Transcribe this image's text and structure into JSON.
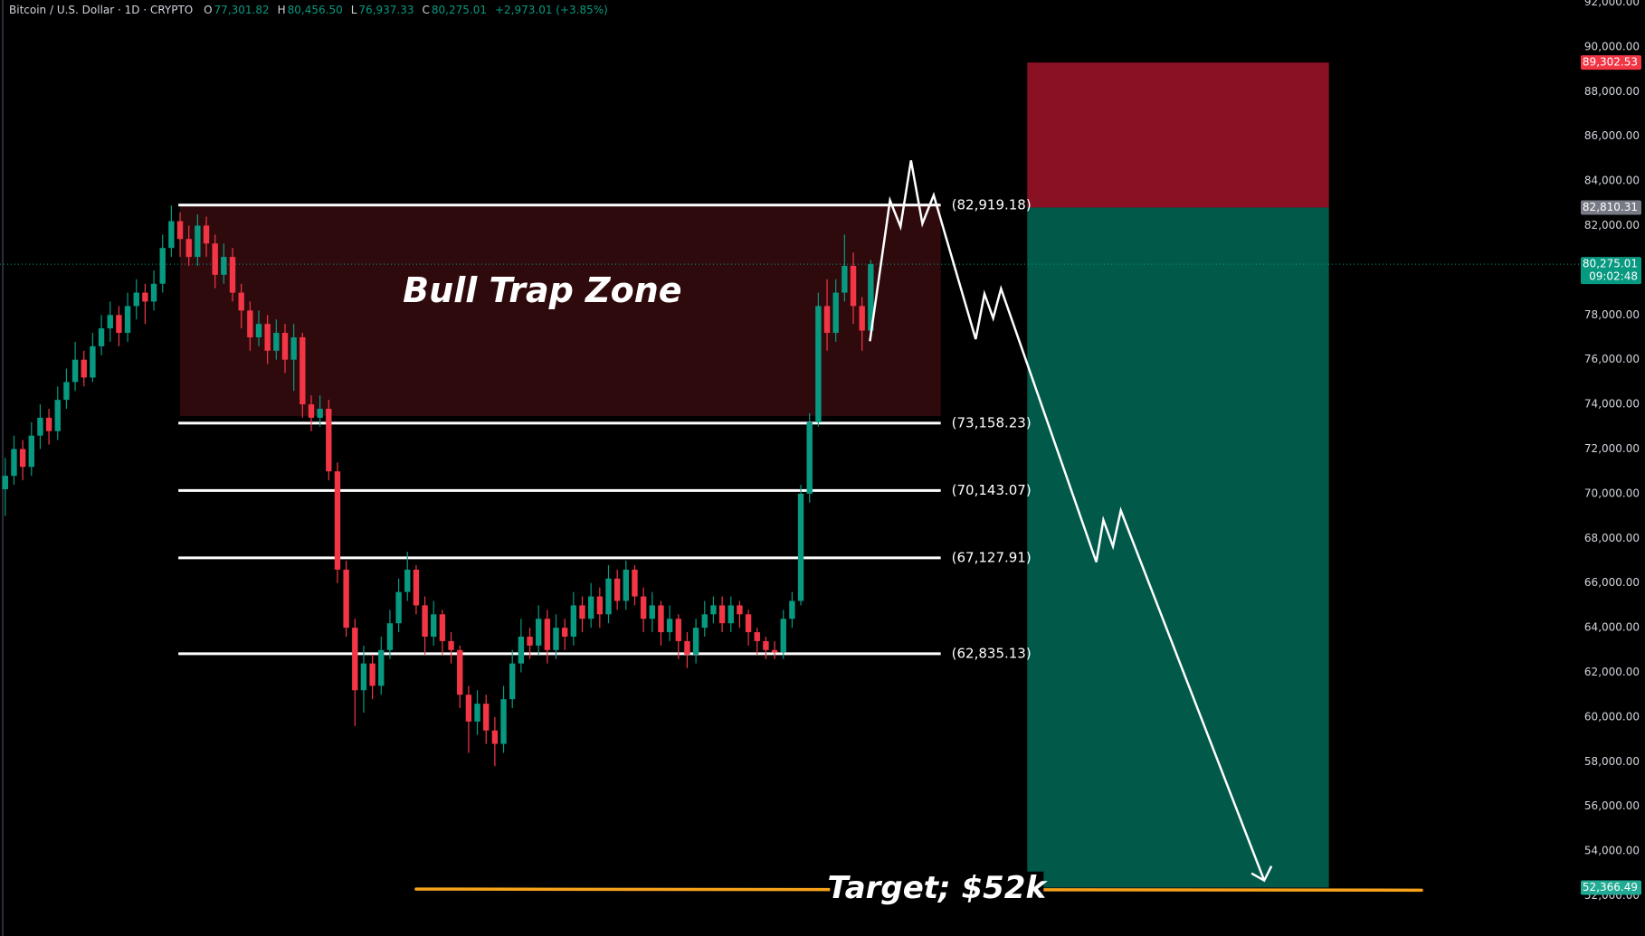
{
  "chart_data": {
    "type": "candlestick",
    "title": "Bitcoin / U.S. Dollar · 1D · CRYPTO",
    "ohlc": [
      {
        "key": "O",
        "value": "77,301.82"
      },
      {
        "key": "H",
        "value": "80,456.50"
      },
      {
        "key": "L",
        "value": "76,937.33"
      },
      {
        "key": "C",
        "value": "80,275.01"
      }
    ],
    "change": "+2,973.01 (+3.85%)",
    "up_color": "#089981",
    "down_color": "#f23645",
    "xlim": [
      -0.6,
      180
    ],
    "ylim": [
      50200,
      92100
    ],
    "yticks": [
      {
        "value": 92000,
        "label": "92,000.00"
      },
      {
        "value": 90000,
        "label": "90,000.00"
      },
      {
        "value": 88000,
        "label": "88,000.00"
      },
      {
        "value": 86000,
        "label": "86,000.00"
      },
      {
        "value": 84000,
        "label": "84,000.00"
      },
      {
        "value": 82000,
        "label": "82,000.00"
      },
      {
        "value": 80000,
        "label": "80,000.00"
      },
      {
        "value": 78000,
        "label": "78,000.00"
      },
      {
        "value": 76000,
        "label": "76,000.00"
      },
      {
        "value": 74000,
        "label": "74,000.00"
      },
      {
        "value": 72000,
        "label": "72,000.00"
      },
      {
        "value": 70000,
        "label": "70,000.00"
      },
      {
        "value": 68000,
        "label": "68,000.00"
      },
      {
        "value": 66000,
        "label": "66,000.00"
      },
      {
        "value": 64000,
        "label": "64,000.00"
      },
      {
        "value": 62000,
        "label": "62,000.00"
      },
      {
        "value": 60000,
        "label": "60,000.00"
      },
      {
        "value": 58000,
        "label": "58,000.00"
      },
      {
        "value": 56000,
        "label": "56,000.00"
      },
      {
        "value": 54000,
        "label": "54,000.00"
      },
      {
        "value": 52000,
        "label": "52,000.00"
      }
    ],
    "open": [
      70200,
      70800,
      72000,
      71200,
      72600,
      73400,
      72800,
      74200,
      75000,
      76000,
      75200,
      76600,
      77400,
      78000,
      77200,
      78400,
      79000,
      78600,
      79400,
      81000,
      82200,
      81400,
      80600,
      82000,
      81200,
      79800,
      80600,
      79000,
      78200,
      77000,
      77600,
      76400,
      77200,
      76000,
      77000,
      74000,
      73400,
      73800,
      71000,
      66600,
      64000,
      61200,
      62400,
      61400,
      63000,
      64200,
      65600,
      66600,
      65000,
      63600,
      64600,
      63400,
      63000,
      61000,
      59800,
      60600,
      59400,
      58800,
      60800,
      62400,
      63600,
      63200,
      64400,
      63000,
      64000,
      63600,
      65000,
      64400,
      65400,
      64600,
      66200,
      65200,
      66600,
      65400,
      64400,
      65000,
      63800,
      64400,
      63400,
      62800,
      64000,
      64600,
      65000,
      64200,
      65000,
      64600,
      63800,
      63400,
      63000,
      62900,
      64400,
      65200,
      70000,
      73200,
      78400,
      77200,
      79000,
      80200,
      78400,
      77301.82
    ],
    "high": [
      71600,
      72600,
      72400,
      73200,
      74000,
      73800,
      74800,
      75600,
      76800,
      76400,
      77200,
      78000,
      78600,
      78400,
      79000,
      79600,
      79400,
      80000,
      81600,
      82900,
      82600,
      82000,
      82500,
      82400,
      81600,
      81200,
      81000,
      79400,
      78600,
      78200,
      78000,
      77800,
      77600,
      77600,
      77200,
      74400,
      74400,
      74200,
      71400,
      67000,
      64400,
      63200,
      62800,
      63600,
      64800,
      66200,
      67400,
      66800,
      65400,
      65200,
      64800,
      63800,
      63200,
      61400,
      61200,
      61000,
      60000,
      61400,
      63000,
      64400,
      64000,
      65000,
      64800,
      64600,
      64400,
      65600,
      65400,
      66000,
      65800,
      66800,
      66600,
      67000,
      66800,
      65800,
      65600,
      65200,
      65000,
      64600,
      63800,
      64400,
      65200,
      65400,
      65400,
      65400,
      65200,
      64800,
      64000,
      63600,
      63400,
      64800,
      65600,
      70400,
      73600,
      79000,
      79600,
      79600,
      81600,
      80800,
      78800,
      80456.5
    ],
    "low": [
      69000,
      70400,
      70600,
      70800,
      72000,
      72200,
      72400,
      73800,
      74600,
      74800,
      75000,
      76200,
      76800,
      76600,
      76800,
      77800,
      77600,
      78200,
      79000,
      80600,
      80600,
      80200,
      80200,
      80600,
      79200,
      79400,
      78600,
      77400,
      76400,
      76600,
      75800,
      76000,
      75400,
      74600,
      73400,
      72800,
      73000,
      70600,
      66000,
      63600,
      59600,
      60200,
      60800,
      61000,
      62600,
      63800,
      65200,
      64600,
      62800,
      63200,
      62800,
      62400,
      60400,
      58400,
      59200,
      58800,
      57800,
      58400,
      60400,
      62000,
      62600,
      62800,
      62400,
      62600,
      63000,
      63200,
      63800,
      64000,
      64000,
      64200,
      64800,
      64800,
      65000,
      63800,
      63800,
      63200,
      63400,
      62600,
      62200,
      62400,
      63600,
      64200,
      63800,
      63800,
      64000,
      63200,
      62800,
      62600,
      62600,
      62600,
      64000,
      65000,
      69600,
      73000,
      76400,
      76800,
      78600,
      77600,
      76400,
      76937.33
    ],
    "close": [
      70800,
      72000,
      71200,
      72600,
      73400,
      72800,
      74200,
      75000,
      76000,
      75200,
      76600,
      77400,
      78000,
      77200,
      78400,
      79000,
      78600,
      79400,
      81000,
      82200,
      81400,
      80600,
      82000,
      81200,
      79800,
      80600,
      79000,
      78200,
      77000,
      77600,
      76400,
      77200,
      76000,
      77000,
      74000,
      73400,
      73800,
      71000,
      66600,
      64000,
      61200,
      62400,
      61400,
      63000,
      64200,
      65600,
      66600,
      65000,
      63600,
      64600,
      63400,
      63000,
      61000,
      59800,
      60600,
      59400,
      58800,
      60800,
      62400,
      63600,
      63200,
      64400,
      63000,
      64000,
      63600,
      65000,
      64400,
      65400,
      64600,
      66200,
      65200,
      66600,
      65400,
      64400,
      65000,
      63800,
      64400,
      63400,
      62800,
      64000,
      64600,
      65000,
      64200,
      65000,
      64600,
      63800,
      63400,
      63000,
      62900,
      64400,
      65200,
      70000,
      73200,
      78400,
      77200,
      79000,
      80200,
      78400,
      77301.82,
      80275.01
    ],
    "zone": {
      "label": "Bull Trap Zone",
      "color": "#2f0a0d",
      "x": [
        20,
        107
      ],
      "values": [
        82919.18,
        73482
      ]
    },
    "levels_x": [
      19.8,
      107
    ],
    "levels": [
      {
        "value": 82919.18,
        "label": "(82,919.18)"
      },
      {
        "value": 73158.23,
        "label": "(73,158.23)"
      },
      {
        "value": 70143.07,
        "label": "(70,143.07)"
      },
      {
        "value": 67127.91,
        "label": "(67,127.91)"
      },
      {
        "value": 62835.13,
        "label": "(62,835.13)"
      }
    ],
    "position": {
      "x": [
        116.9,
        151.4
      ],
      "stop": 89302.53,
      "entry": 82810.31,
      "target": 52366.49,
      "stop_color": "#8a1124",
      "target_color": "#01594a"
    },
    "projection": {
      "x": [
        98.9,
        101.2,
        102.4,
        103.6,
        104.9,
        106.2,
        111.0,
        112.0,
        113.0,
        113.9,
        124.8,
        125.6,
        126.7,
        127.6,
        144.0
      ],
      "values": [
        76824,
        83129,
        81953,
        84918,
        82094,
        83365,
        76918,
        78941,
        77859,
        79176,
        66941,
        68824,
        67647,
        69247,
        52682
      ]
    },
    "target_line": {
      "label": "Target; $52k",
      "color": "#f7a21b",
      "x": [
        47,
        162
      ],
      "values": [
        52300,
        52250
      ]
    },
    "current_price": 80275.01,
    "price_labels": [
      {
        "value": 89302.53,
        "label": "89,302.53",
        "color": "#f23645"
      },
      {
        "value": 82810.31,
        "label": "82,810.31",
        "color": "#787b86"
      },
      {
        "value": 80275.01,
        "label": "80,275.01",
        "color": "#089981",
        "countdown": "09:02:48"
      },
      {
        "value": 52366.49,
        "label": "52,366.49",
        "color": "#22ab94"
      }
    ]
  }
}
